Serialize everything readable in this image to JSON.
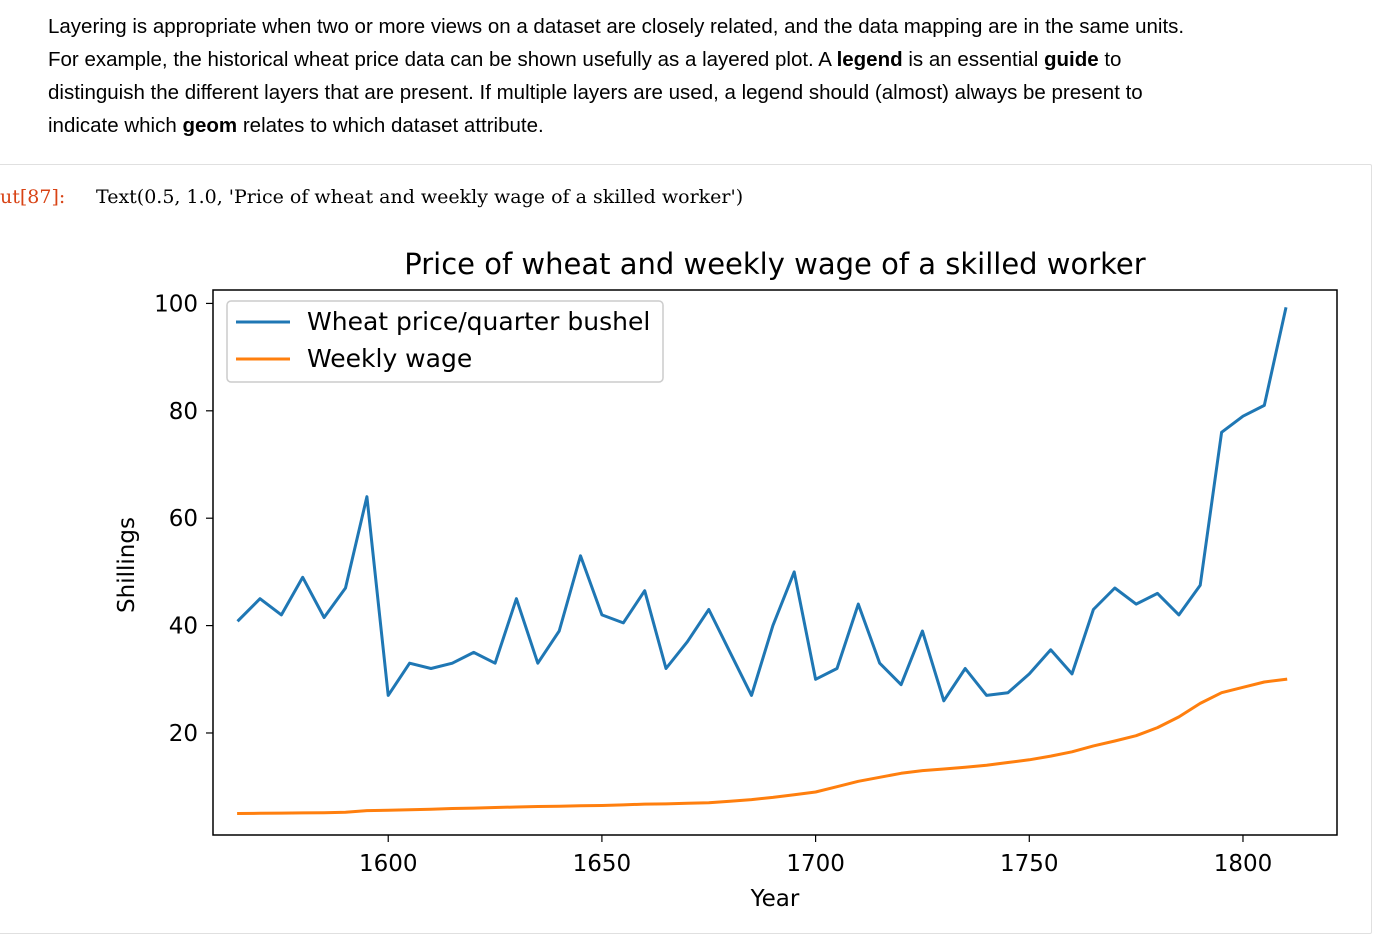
{
  "markdown": {
    "p1": "Layering is appropriate when two or more views on a dataset are closely related, and the data mapping are in the same units.",
    "p2_a": "For example, the historical wheat price data can be shown usefully as a layered plot. A ",
    "p2_bold1": "legend",
    "p2_b": " is an essential ",
    "p2_bold2": "guide",
    "p2_c": " to",
    "p3": "distinguish the different layers that are present. If multiple layers are used, a legend should (almost) always be present to",
    "p4_a": "indicate which ",
    "p4_bold": "geom",
    "p4_b": " relates to which dataset attribute."
  },
  "output": {
    "prompt": "ut[87]:",
    "text": "Text(0.5, 1.0, 'Price of wheat and weekly wage of a skilled worker')"
  },
  "chart_data": {
    "type": "line",
    "title": "Price of wheat and weekly wage of a skilled worker",
    "xlabel": "Year",
    "ylabel": "Shillings",
    "xlim": [
      1559,
      1822
    ],
    "ylim": [
      1,
      102.5
    ],
    "xticks": [
      1600,
      1650,
      1700,
      1750,
      1800
    ],
    "yticks": [
      20,
      40,
      60,
      80,
      100
    ],
    "legend": "upper-left",
    "grid": false,
    "x": [
      1565,
      1570,
      1575,
      1580,
      1585,
      1590,
      1595,
      1600,
      1605,
      1610,
      1615,
      1620,
      1625,
      1630,
      1635,
      1640,
      1645,
      1650,
      1655,
      1660,
      1665,
      1670,
      1675,
      1680,
      1685,
      1690,
      1695,
      1700,
      1705,
      1710,
      1715,
      1720,
      1725,
      1730,
      1735,
      1740,
      1745,
      1750,
      1755,
      1760,
      1765,
      1770,
      1775,
      1780,
      1785,
      1790,
      1795,
      1800,
      1805,
      1810
    ],
    "series": [
      {
        "name": "Wheat price/quarter bushel",
        "color": "#1f77b4",
        "values": [
          41,
          45,
          42,
          49,
          41.5,
          47,
          64,
          27,
          33,
          32,
          33,
          35,
          33,
          45,
          33,
          39,
          53,
          42,
          40.5,
          46.5,
          32,
          37,
          43,
          35,
          27,
          40,
          50,
          30,
          32,
          44,
          33,
          29,
          39,
          26,
          32,
          27,
          27.5,
          31,
          35.5,
          31,
          43,
          47,
          44,
          46,
          42,
          47.5,
          76,
          79,
          81,
          99
        ]
      },
      {
        "name": "Weekly wage",
        "color": "#ff7f0e",
        "values": [
          5,
          5.05,
          5.08,
          5.12,
          5.15,
          5.25,
          5.54,
          5.61,
          5.69,
          5.78,
          5.94,
          6.01,
          6.12,
          6.22,
          6.3,
          6.37,
          6.45,
          6.5,
          6.6,
          6.75,
          6.8,
          6.9,
          7,
          7.3,
          7.6,
          8,
          8.5,
          9,
          10,
          11,
          11.75,
          12.5,
          13,
          13.3,
          13.6,
          14,
          14.5,
          15,
          15.7,
          16.5,
          17.6,
          18.5,
          19.5,
          21,
          23,
          25.5,
          27.5,
          28.5,
          29.5,
          30
        ]
      }
    ]
  }
}
